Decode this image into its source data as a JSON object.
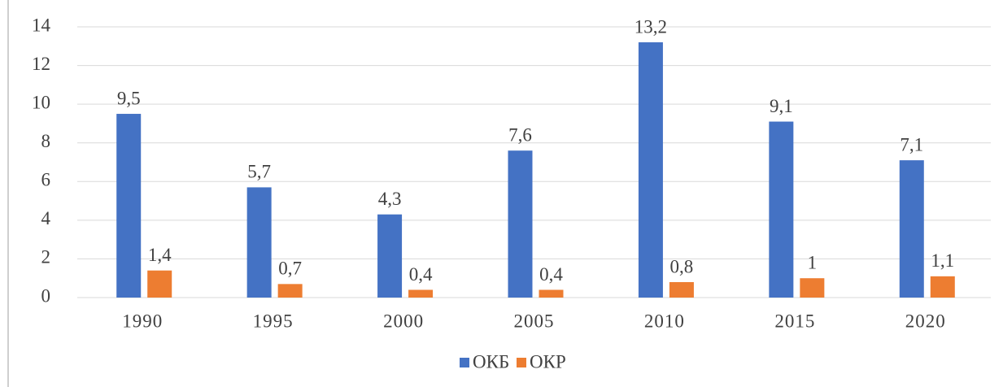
{
  "chart_data": {
    "type": "bar",
    "categories": [
      "1990",
      "1995",
      "2000",
      "2005",
      "2010",
      "2015",
      "2020"
    ],
    "series": [
      {
        "name": "ОКБ",
        "color": "#4472c4",
        "values": [
          9.5,
          5.7,
          4.3,
          7.6,
          13.2,
          9.1,
          7.1
        ],
        "value_labels": [
          "9,5",
          "5,7",
          "4,3",
          "7,6",
          "13,2",
          "9,1",
          "7,1"
        ]
      },
      {
        "name": "ОКР",
        "color": "#ed7d31",
        "values": [
          1.4,
          0.7,
          0.4,
          0.4,
          0.8,
          1,
          1.1
        ],
        "value_labels": [
          "1,4",
          "0,7",
          "0,4",
          "0,4",
          "0,8",
          "1",
          "1,1"
        ]
      }
    ],
    "ylim": [
      0,
      14
    ],
    "yticks": [
      0,
      2,
      4,
      6,
      8,
      10,
      12,
      14
    ],
    "grid": true,
    "legend": "bottom"
  }
}
